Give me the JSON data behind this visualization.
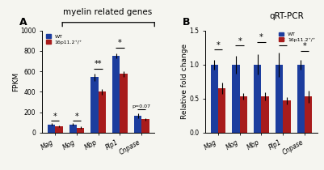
{
  "panel_A": {
    "title": "myelin related genes",
    "ylabel": "FPKM",
    "categories": [
      "Mag",
      "Mog",
      "Mbp",
      "Plp1",
      "Cnpase"
    ],
    "wt_values": [
      80,
      80,
      545,
      750,
      165
    ],
    "mut_values": [
      60,
      50,
      400,
      575,
      130
    ],
    "wt_err": [
      10,
      10,
      35,
      25,
      20
    ],
    "mut_err": [
      8,
      8,
      25,
      30,
      15
    ],
    "ylim": [
      0,
      1000
    ],
    "yticks": [
      0,
      200,
      400,
      600,
      800,
      1000
    ],
    "significance": [
      "*",
      "*",
      "**",
      "*",
      "p=0.07"
    ],
    "sig_heights": [
      115,
      115,
      625,
      835,
      225
    ]
  },
  "panel_B": {
    "title": "qRT-PCR",
    "ylabel": "Relative fold change",
    "categories": [
      "Mag",
      "Mog",
      "Mbp",
      "Plp1",
      "Cnpase"
    ],
    "wt_values": [
      1.0,
      1.0,
      1.0,
      1.0,
      1.0
    ],
    "mut_values": [
      0.65,
      0.53,
      0.53,
      0.47,
      0.53
    ],
    "wt_err": [
      0.07,
      0.13,
      0.15,
      0.18,
      0.07
    ],
    "mut_err": [
      0.08,
      0.05,
      0.06,
      0.05,
      0.09
    ],
    "ylim": [
      0,
      1.5
    ],
    "yticks": [
      0.0,
      0.5,
      1.0,
      1.5
    ],
    "significance": [
      "*",
      "*",
      "*",
      "*",
      "*"
    ],
    "sig_heights": [
      1.22,
      1.28,
      1.33,
      1.28,
      1.2
    ]
  },
  "wt_color": "#1c3d9e",
  "mut_color": "#a81c1c",
  "bar_width": 0.35,
  "legend_wt": "WT",
  "legend_mut": "16p11.2⁺/⁺",
  "background_color": "#f5f5f0",
  "tick_fontsize": 5.5,
  "label_fontsize": 6.5,
  "title_fontsize": 7.5
}
